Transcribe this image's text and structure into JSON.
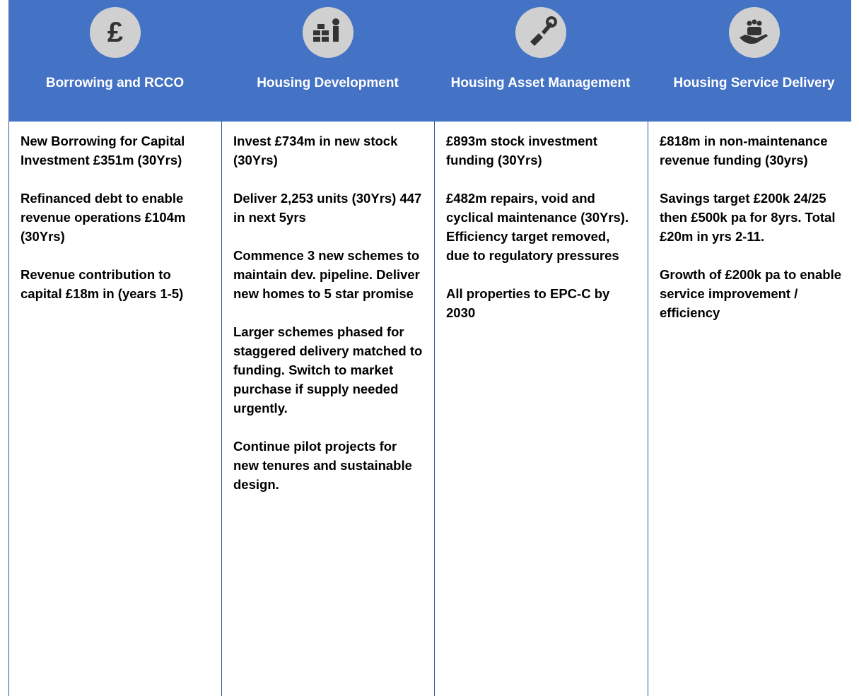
{
  "columns": [
    {
      "title": "Borrowing and RCCO",
      "paragraphs": [
        "New Borrowing for Capital Investment £351m (30Yrs)",
        "Refinanced debt to enable revenue operations £104m (30Yrs)",
        "Revenue contribution to capital £18m in (years 1-5)"
      ]
    },
    {
      "title": "Housing Development",
      "paragraphs": [
        "Invest £734m in new stock (30Yrs)",
        "Deliver 2,253 units (30Yrs) 447 in next 5yrs",
        "Commence 3 new schemes to maintain dev. pipeline. Deliver new homes to 5 star promise",
        "Larger schemes phased for staggered delivery matched to funding. Switch to market purchase if supply needed urgently.",
        "Continue pilot projects for new tenures and sustainable design."
      ]
    },
    {
      "title": "Housing Asset Management",
      "paragraphs": [
        "£893m stock investment funding (30Yrs)",
        "£482m repairs, void and cyclical maintenance (30Yrs). Efficiency target removed, due to regulatory pressures",
        "All properties to EPC-C by 2030"
      ]
    },
    {
      "title": "Housing Service Delivery",
      "paragraphs": [
        "£818m in non-maintenance revenue funding (30yrs)",
        "Savings target £200k 24/25 then £500k pa for 8yrs. Total £20m in yrs 2-11.",
        "Growth of £200k pa to enable service improvement / efficiency"
      ]
    }
  ]
}
